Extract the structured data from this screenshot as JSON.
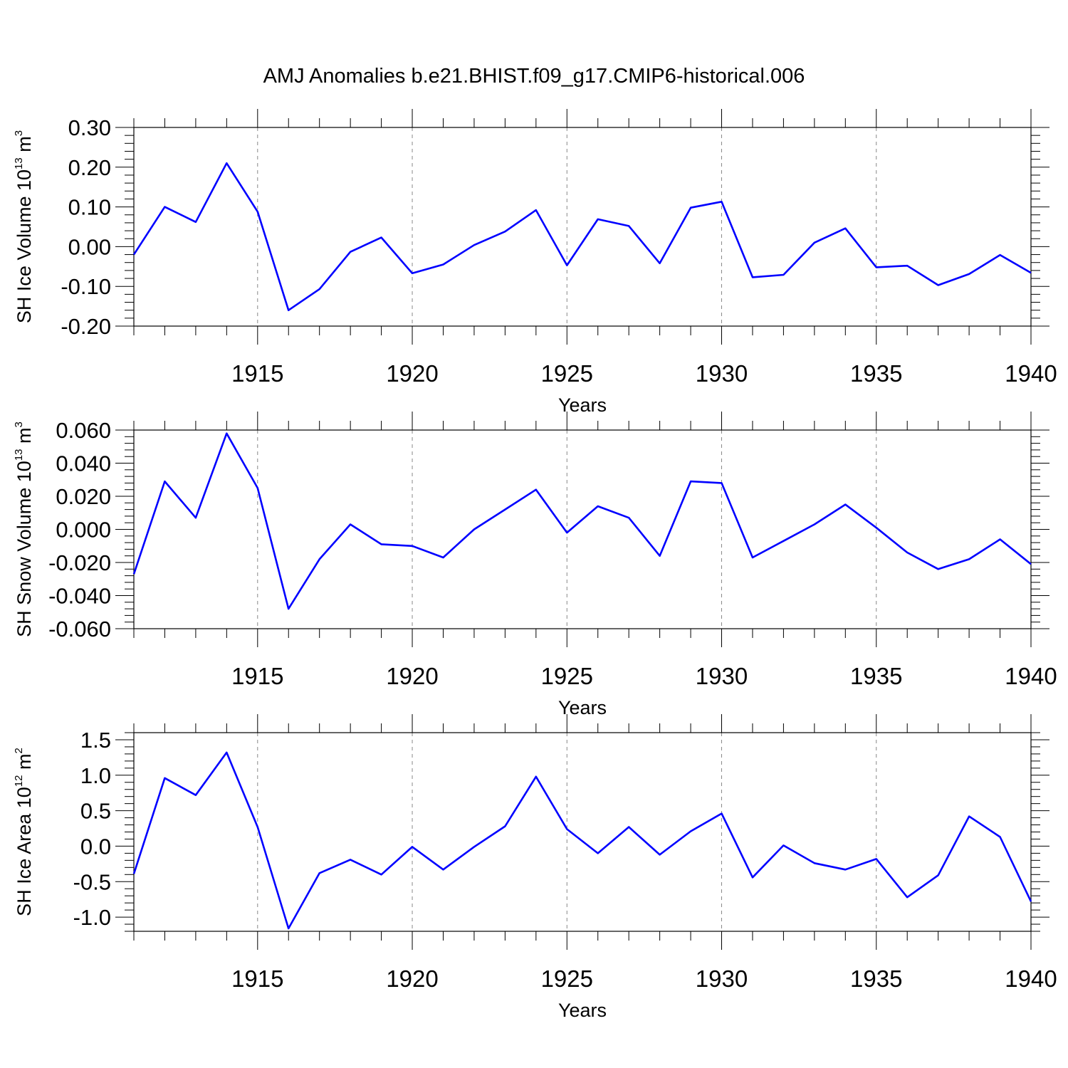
{
  "figure": {
    "title": "AMJ Anomalies b.e21.BHIST.f09_g17.CMIP6-historical.006"
  },
  "chart_data": [
    {
      "type": "line",
      "title": "AMJ Anomalies b.e21.BHIST.f09_g17.CMIP6-historical.006",
      "xlabel": "Years",
      "ylabel_prefix": "SH Ice Volume 10",
      "ylabel_exp": "13",
      "ylabel_unit": " m",
      "ylabel_unit_exp": "3",
      "xlim": [
        1911,
        1940
      ],
      "ylim": [
        -0.2,
        0.3
      ],
      "xticks": [
        1915,
        1920,
        1925,
        1930,
        1935,
        1940
      ],
      "yticks": [
        -0.2,
        -0.1,
        0.0,
        0.1,
        0.2,
        0.3
      ],
      "ytick_labels": [
        "-0.20",
        "-0.10",
        "0.00",
        "0.10",
        "0.20",
        "0.30"
      ],
      "grid": "vertical dashed at major x ticks",
      "color": "#0000ff",
      "x": [
        1911,
        1912,
        1913,
        1914,
        1915,
        1916,
        1917,
        1918,
        1919,
        1920,
        1921,
        1922,
        1923,
        1924,
        1925,
        1926,
        1927,
        1928,
        1929,
        1930,
        1931,
        1932,
        1933,
        1934,
        1935,
        1936,
        1937,
        1938,
        1939,
        1940
      ],
      "values": [
        -0.02,
        0.1,
        0.062,
        0.21,
        0.088,
        -0.16,
        -0.107,
        -0.013,
        0.023,
        -0.067,
        -0.045,
        0.004,
        0.038,
        0.092,
        -0.047,
        0.069,
        0.052,
        -0.042,
        0.098,
        0.113,
        -0.077,
        -0.071,
        0.01,
        0.046,
        -0.052,
        -0.048,
        -0.097,
        -0.069,
        -0.021,
        -0.066
      ]
    },
    {
      "type": "line",
      "xlabel": "Years",
      "ylabel_prefix": "SH Snow Volume 10",
      "ylabel_exp": "13",
      "ylabel_unit": " m",
      "ylabel_unit_exp": "3",
      "xlim": [
        1911,
        1940
      ],
      "ylim": [
        -0.06,
        0.06
      ],
      "xticks": [
        1915,
        1920,
        1925,
        1930,
        1935,
        1940
      ],
      "yticks": [
        -0.06,
        -0.04,
        -0.02,
        0.0,
        0.02,
        0.04,
        0.06
      ],
      "ytick_labels": [
        "-0.060",
        "-0.040",
        "-0.020",
        "0.000",
        "0.020",
        "0.040",
        "0.060"
      ],
      "grid": "vertical dashed at major x ticks",
      "color": "#0000ff",
      "x": [
        1911,
        1912,
        1913,
        1914,
        1915,
        1916,
        1917,
        1918,
        1919,
        1920,
        1921,
        1922,
        1923,
        1924,
        1925,
        1926,
        1927,
        1928,
        1929,
        1930,
        1931,
        1932,
        1933,
        1934,
        1935,
        1936,
        1937,
        1938,
        1939,
        1940
      ],
      "values": [
        -0.027,
        0.029,
        0.007,
        0.058,
        0.025,
        -0.048,
        -0.018,
        0.003,
        -0.009,
        -0.01,
        -0.017,
        0.0,
        0.012,
        0.024,
        -0.002,
        0.014,
        0.007,
        -0.016,
        0.029,
        0.028,
        -0.017,
        -0.007,
        0.003,
        0.015,
        0.001,
        -0.014,
        -0.024,
        -0.018,
        -0.006,
        -0.021
      ]
    },
    {
      "type": "line",
      "xlabel": "Years",
      "ylabel_prefix": "SH Ice Area 10",
      "ylabel_exp": "12",
      "ylabel_unit": " m",
      "ylabel_unit_exp": "2",
      "xlim": [
        1911,
        1940
      ],
      "ylim": [
        -1.2,
        1.6
      ],
      "xticks": [
        1915,
        1920,
        1925,
        1930,
        1935,
        1940
      ],
      "yticks": [
        -1.0,
        -0.5,
        0.0,
        0.5,
        1.0,
        1.5
      ],
      "ytick_labels": [
        "-1.0",
        "-0.5",
        "0.0",
        "0.5",
        "1.0",
        "1.5"
      ],
      "grid": "vertical dashed at major x ticks",
      "color": "#0000ff",
      "x": [
        1911,
        1912,
        1913,
        1914,
        1915,
        1916,
        1917,
        1918,
        1919,
        1920,
        1921,
        1922,
        1923,
        1924,
        1925,
        1926,
        1927,
        1928,
        1929,
        1930,
        1931,
        1932,
        1933,
        1934,
        1935,
        1936,
        1937,
        1938,
        1939,
        1940
      ],
      "values": [
        -0.39,
        0.96,
        0.72,
        1.32,
        0.27,
        -1.16,
        -0.38,
        -0.19,
        -0.4,
        -0.01,
        -0.33,
        -0.01,
        0.28,
        0.98,
        0.24,
        -0.1,
        0.27,
        -0.12,
        0.21,
        0.46,
        -0.44,
        0.01,
        -0.24,
        -0.33,
        -0.18,
        -0.72,
        -0.41,
        0.42,
        0.13,
        -0.78
      ]
    }
  ]
}
